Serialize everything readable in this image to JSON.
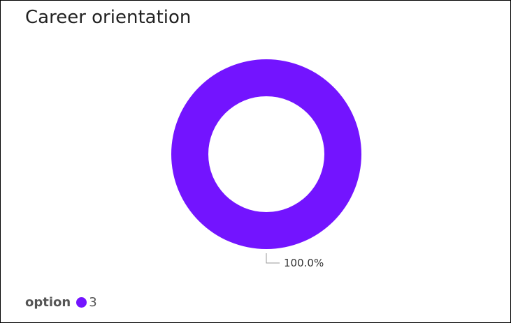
{
  "chart_data": {
    "type": "pie",
    "title": "Career orientation",
    "donut": true,
    "legend": {
      "title": "option",
      "placement": "bottom-left"
    },
    "series": [
      {
        "name": "3",
        "value": 100.0,
        "label": "100.0%",
        "color": "#7314FF"
      }
    ]
  }
}
